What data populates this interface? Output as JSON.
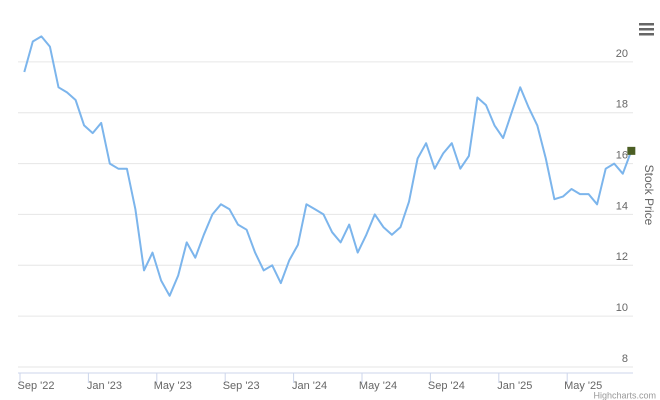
{
  "chart_data": {
    "type": "line",
    "y_axis_title": "Stock Price",
    "credit": "Highcharts.com",
    "x": [
      "2022-09",
      "2022-09",
      "2022-10",
      "2022-10",
      "2022-11",
      "2022-11",
      "2022-12",
      "2022-12",
      "2023-01",
      "2023-01",
      "2023-02",
      "2023-02",
      "2023-03",
      "2023-03",
      "2023-04",
      "2023-04",
      "2023-05",
      "2023-05",
      "2023-06",
      "2023-06",
      "2023-07",
      "2023-07",
      "2023-08",
      "2023-08",
      "2023-09",
      "2023-09",
      "2023-10",
      "2023-10",
      "2023-11",
      "2023-11",
      "2023-12",
      "2023-12",
      "2024-01",
      "2024-01",
      "2024-02",
      "2024-02",
      "2024-03",
      "2024-03",
      "2024-04",
      "2024-04",
      "2024-05",
      "2024-05",
      "2024-06",
      "2024-06",
      "2024-07",
      "2024-07",
      "2024-08",
      "2024-08",
      "2024-09",
      "2024-09",
      "2024-10",
      "2024-10",
      "2024-11",
      "2024-11",
      "2024-12",
      "2024-12",
      "2025-01",
      "2025-01",
      "2025-02",
      "2025-02",
      "2025-03",
      "2025-03",
      "2025-04",
      "2025-04",
      "2025-05",
      "2025-05",
      "2025-06",
      "2025-06",
      "2025-07",
      "2025-07",
      "2025-08",
      "2025-08"
    ],
    "series": [
      {
        "name": "Stock Price",
        "color": "#7cb5ec",
        "values": [
          19.6,
          20.8,
          21.0,
          20.6,
          19.0,
          18.8,
          18.5,
          17.5,
          17.2,
          17.6,
          16.0,
          15.8,
          15.8,
          14.2,
          11.8,
          12.5,
          11.4,
          10.8,
          11.6,
          12.9,
          12.3,
          13.2,
          14.0,
          14.4,
          14.2,
          13.6,
          13.4,
          12.5,
          11.8,
          12.0,
          11.3,
          12.2,
          12.8,
          14.4,
          14.2,
          14.0,
          13.3,
          12.9,
          13.6,
          12.5,
          13.2,
          14.0,
          13.5,
          13.2,
          13.5,
          14.5,
          16.2,
          16.8,
          15.8,
          16.4,
          16.8,
          15.8,
          16.3,
          18.6,
          18.3,
          17.5,
          17.0,
          18.0,
          19.0,
          18.2,
          17.5,
          16.2,
          14.6,
          14.7,
          15.0,
          14.8,
          14.8,
          14.4,
          15.8,
          16.0,
          15.6,
          16.5
        ]
      }
    ],
    "end_marker_color": "#4b5e24",
    "xticks": [
      {
        "value": "2022-09",
        "label": "Sep '22"
      },
      {
        "value": "2023-01",
        "label": "Jan '23"
      },
      {
        "value": "2023-05",
        "label": "May '23"
      },
      {
        "value": "2023-09",
        "label": "Sep '23"
      },
      {
        "value": "2024-01",
        "label": "Jan '24"
      },
      {
        "value": "2024-05",
        "label": "May '24"
      },
      {
        "value": "2024-09",
        "label": "Sep '24"
      },
      {
        "value": "2025-01",
        "label": "Jan '25"
      },
      {
        "value": "2025-05",
        "label": "May '25"
      }
    ],
    "ylim": [
      8,
      22
    ],
    "yticks": [
      8,
      10,
      12,
      14,
      16,
      18,
      20
    ],
    "grid": true
  }
}
